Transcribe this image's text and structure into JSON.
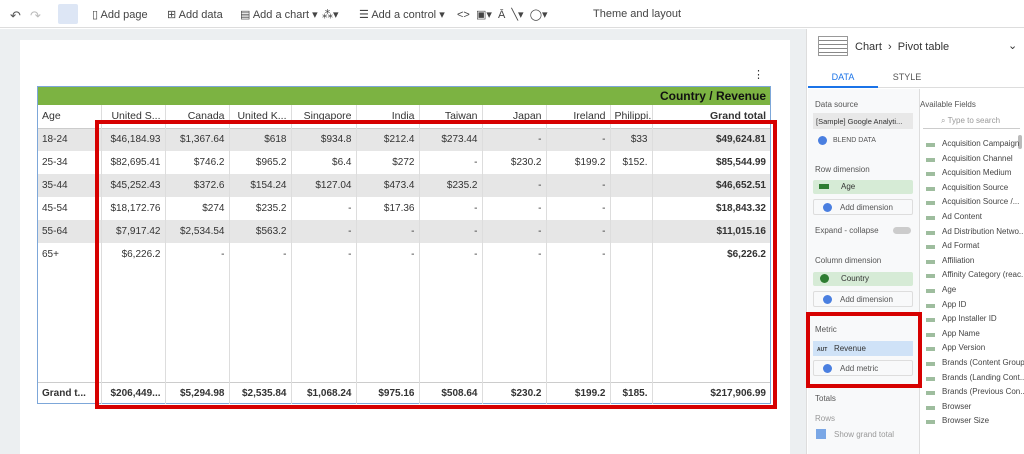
{
  "toolbar": {
    "items": [
      "Add page",
      "Add data",
      "Add a chart",
      "Add a control",
      "Theme and layout"
    ]
  },
  "table": {
    "title": "Country / Revenue",
    "header": [
      "Age",
      "United S...",
      "Canada",
      "United K...",
      "Singapore",
      "India",
      "Taiwan",
      "Japan",
      "Ireland",
      "Philippi...",
      "Grand total"
    ],
    "rows": [
      [
        "18-24",
        "$46,184.93",
        "$1,367.64",
        "$618",
        "$934.8",
        "$212.4",
        "$273.44",
        "-",
        "-",
        "$33",
        "$49,624.81"
      ],
      [
        "25-34",
        "$82,695.41",
        "$746.2",
        "$965.2",
        "$6.4",
        "$272",
        "-",
        "$230.2",
        "$199.2",
        "$152.",
        "$85,544.99"
      ],
      [
        "35-44",
        "$45,252.43",
        "$372.6",
        "$154.24",
        "$127.04",
        "$473.4",
        "$235.2",
        "-",
        "-",
        null,
        "$46,652.51"
      ],
      [
        "45-54",
        "$18,172.76",
        "$274",
        "$235.2",
        "-",
        "$17.36",
        "-",
        "-",
        "-",
        null,
        "$18,843.32"
      ],
      [
        "55-64",
        "$7,917.42",
        "$2,534.54",
        "$563.2",
        "-",
        "-",
        "-",
        "-",
        "-",
        null,
        "$11,015.16"
      ],
      [
        "65+",
        "$6,226.2",
        "-",
        "-",
        "-",
        "-",
        "-",
        "-",
        "-",
        null,
        "$6,226.2"
      ]
    ],
    "total_row": [
      "Grand t...",
      "$206,449...",
      "$5,294.98",
      "$2,535.84",
      "$1,068.24",
      "$975.16",
      "$508.64",
      "$230.2",
      "$199.2",
      "$185.",
      "$217,906.99"
    ]
  },
  "panel": {
    "breadcrumb": [
      "Chart",
      "Pivot table"
    ],
    "tabs": [
      "DATA",
      "STYLE"
    ],
    "data_source_label": "Data source",
    "data_source": "[Sample] Google Analyti...",
    "blend": "BLEND DATA",
    "row_dimension_label": "Row dimension",
    "row_dimension": "Age",
    "add_dimension": "Add dimension",
    "expand": "Expand - collapse",
    "column_dimension_label": "Column dimension",
    "column_dimension": "Country",
    "add_dimension_2": "Add dimension",
    "metric_label": "Metric",
    "metric_type": "AUT",
    "metric": "Revenue",
    "add_metric": "Add metric",
    "totals_label": "Totals",
    "rows_label": "Rows",
    "show_grand_total": "Show grand total"
  },
  "fields": {
    "title": "Available Fields",
    "search": "Type to search",
    "items": [
      "Acquisition Campaign",
      "Acquisition Channel",
      "Acquisition Medium",
      "Acquisition Source",
      "Acquisition Source /...",
      "Ad Content",
      "Ad Distribution Netwo...",
      "Ad Format",
      "Affiliation",
      "Affinity Category (reac...",
      "Age",
      "App ID",
      "App Installer ID",
      "App Name",
      "App Version",
      "Brands (Content Group)",
      "Brands (Landing Cont...",
      "Brands (Previous Con...",
      "Browser",
      "Browser Size"
    ]
  }
}
